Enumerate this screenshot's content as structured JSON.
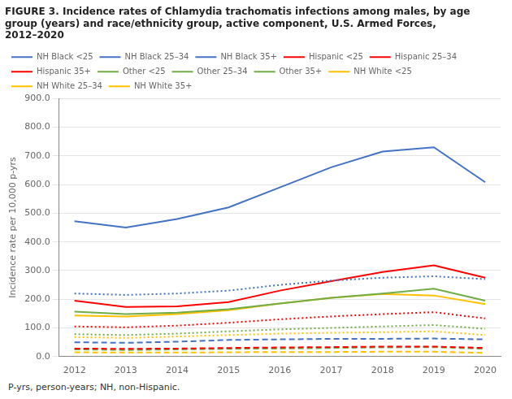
{
  "chart_data": {
    "type": "line",
    "title": "FIGURE 3. Incidence rates of Chlamydia trachomatis infections among males, by age group (years) and race/ethnicity group, active component, U.S. Armed Forces, 2012–2020",
    "y_label": "Incidence rate per 10,000 p-yrs",
    "annotations": [
      "P-yrs, person-years; NH, non-Hispanic."
    ],
    "x": [
      2012,
      2013,
      2014,
      2015,
      2016,
      2017,
      2018,
      2019,
      2020
    ],
    "xlim": [
      2011.7,
      2020.3
    ],
    "xticks": [
      2012,
      2013,
      2014,
      2015,
      2016,
      2017,
      2018,
      2019,
      2020
    ],
    "ylim": [
      0,
      900
    ],
    "yticks": [
      {
        "value": 0,
        "label": "0.0"
      },
      {
        "value": 100,
        "label": "100.0"
      },
      {
        "value": 200,
        "label": "200.0"
      },
      {
        "value": 300,
        "label": "300.0"
      },
      {
        "value": 400,
        "label": "400.0"
      },
      {
        "value": 500,
        "label": "500.0"
      },
      {
        "value": 600,
        "label": "600.0"
      },
      {
        "value": 700,
        "label": "700.0"
      },
      {
        "value": 800,
        "label": "800.0"
      },
      {
        "value": 900,
        "label": "900.0"
      }
    ],
    "grid": "y",
    "legend": "upper left",
    "series": [
      {
        "name": "NH Black <25",
        "color": "#4472C4",
        "line_style": "solid",
        "values": [
          472,
          450,
          480,
          520,
          590,
          660,
          715,
          730,
          608
        ]
      },
      {
        "name": "NH Black 25–34",
        "color": "#4472C4",
        "line_style": "dotted",
        "values": [
          220,
          215,
          220,
          230,
          250,
          265,
          275,
          280,
          270
        ]
      },
      {
        "name": "NH Black 35+",
        "color": "#4472C4",
        "line_style": "dashed",
        "values": [
          50,
          48,
          52,
          58,
          60,
          62,
          62,
          63,
          60
        ]
      },
      {
        "name": "Hispanic <25",
        "color": "#FF0000",
        "line_style": "solid",
        "values": [
          195,
          173,
          175,
          190,
          230,
          263,
          295,
          318,
          275
        ]
      },
      {
        "name": "Hispanic 25–34",
        "color": "#FF0000",
        "line_style": "dotted",
        "values": [
          105,
          102,
          108,
          118,
          130,
          140,
          148,
          155,
          133
        ]
      },
      {
        "name": "Hispanic 35+",
        "color": "#FF0000",
        "line_style": "dashed",
        "values": [
          28,
          27,
          28,
          30,
          32,
          33,
          35,
          35,
          30
        ]
      },
      {
        "name": "Other <25",
        "color": "#70AD47",
        "line_style": "solid",
        "values": [
          157,
          148,
          153,
          165,
          185,
          205,
          220,
          237,
          195
        ]
      },
      {
        "name": "Other 25–34",
        "color": "#70AD47",
        "line_style": "dotted",
        "values": [
          78,
          75,
          80,
          88,
          95,
          100,
          105,
          110,
          97
        ]
      },
      {
        "name": "Other 35+",
        "color": "#70AD47",
        "line_style": "dashed",
        "values": [
          25,
          23,
          25,
          27,
          28,
          30,
          32,
          33,
          27
        ]
      },
      {
        "name": "NH White <25",
        "color": "#FFC000",
        "line_style": "solid",
        "values": [
          143,
          140,
          148,
          162,
          185,
          205,
          218,
          213,
          183
        ]
      },
      {
        "name": "NH White 25–34",
        "color": "#FFC000",
        "line_style": "dotted",
        "values": [
          68,
          65,
          70,
          75,
          80,
          83,
          85,
          88,
          75
        ]
      },
      {
        "name": "NH White 35+",
        "color": "#FFC000",
        "line_style": "dashed",
        "values": [
          15,
          14,
          14,
          15,
          16,
          16,
          17,
          17,
          13
        ]
      }
    ]
  }
}
